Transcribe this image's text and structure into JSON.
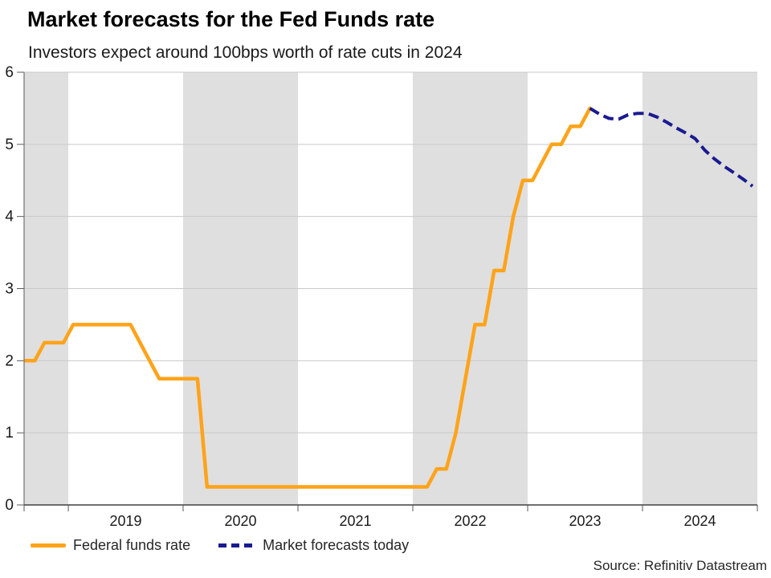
{
  "header": {
    "title": "Market forecasts for the Fed Funds rate",
    "subtitle": "Investors expect around 100bps worth of rate cuts in 2024"
  },
  "legend": {
    "items": [
      {
        "label": "Federal funds rate",
        "color": "#FFA319",
        "style": "solid"
      },
      {
        "label": "Market forecasts today",
        "color": "#1A1A90",
        "style": "dashed"
      }
    ]
  },
  "footer": {
    "source": "Source: Refinitiv Datastream"
  },
  "chart_data": {
    "type": "line",
    "title": "Market forecasts for the Fed Funds rate",
    "subtitle": "Investors expect around 100bps worth of rate cuts in 2024",
    "xlabel": "",
    "ylabel": "",
    "ylim": [
      0,
      6
    ],
    "y_ticks": [
      0,
      1,
      2,
      3,
      4,
      5,
      6
    ],
    "x_range": [
      2018.615,
      2025.0
    ],
    "x_tick_labels": [
      "2019",
      "2020",
      "2021",
      "2022",
      "2023",
      "2024"
    ],
    "shaded_years": [
      2018,
      2020,
      2022,
      2024
    ],
    "grid": "horizontal",
    "legend_position": "bottom-left",
    "colors": {
      "band": "#DFDFDF",
      "gridline": "#C9C9C9",
      "axis_x": "#404040",
      "axis_y": "#737373",
      "tick": "#595959",
      "tick_text": "#1A1A1A"
    },
    "series": [
      {
        "name": "Federal funds rate",
        "color": "#FFA319",
        "dash": false,
        "points": [
          [
            2018.625,
            2.0
          ],
          [
            2018.708,
            2.0
          ],
          [
            2018.792,
            2.25
          ],
          [
            2018.958,
            2.25
          ],
          [
            2019.042,
            2.5
          ],
          [
            2019.542,
            2.5
          ],
          [
            2019.625,
            2.25
          ],
          [
            2019.708,
            2.0
          ],
          [
            2019.792,
            1.75
          ],
          [
            2020.125,
            1.75
          ],
          [
            2020.208,
            0.25
          ],
          [
            2022.125,
            0.25
          ],
          [
            2022.208,
            0.5
          ],
          [
            2022.292,
            0.5
          ],
          [
            2022.375,
            1.0
          ],
          [
            2022.458,
            1.75
          ],
          [
            2022.542,
            2.5
          ],
          [
            2022.625,
            2.5
          ],
          [
            2022.708,
            3.25
          ],
          [
            2022.792,
            3.25
          ],
          [
            2022.875,
            4.0
          ],
          [
            2022.958,
            4.5
          ],
          [
            2023.042,
            4.5
          ],
          [
            2023.125,
            4.75
          ],
          [
            2023.208,
            5.0
          ],
          [
            2023.292,
            5.0
          ],
          [
            2023.375,
            5.25
          ],
          [
            2023.458,
            5.25
          ],
          [
            2023.542,
            5.5
          ]
        ]
      },
      {
        "name": "Market forecasts today",
        "color": "#1A1A90",
        "dash": true,
        "points": [
          [
            2023.542,
            5.5
          ],
          [
            2023.625,
            5.42
          ],
          [
            2023.708,
            5.36
          ],
          [
            2023.792,
            5.35
          ],
          [
            2023.875,
            5.41
          ],
          [
            2023.958,
            5.43
          ],
          [
            2024.042,
            5.43
          ],
          [
            2024.125,
            5.38
          ],
          [
            2024.208,
            5.31
          ],
          [
            2024.292,
            5.23
          ],
          [
            2024.375,
            5.16
          ],
          [
            2024.458,
            5.08
          ],
          [
            2024.542,
            4.92
          ],
          [
            2024.625,
            4.8
          ],
          [
            2024.708,
            4.7
          ],
          [
            2024.792,
            4.61
          ],
          [
            2024.875,
            4.52
          ],
          [
            2024.958,
            4.42
          ]
        ]
      }
    ]
  }
}
